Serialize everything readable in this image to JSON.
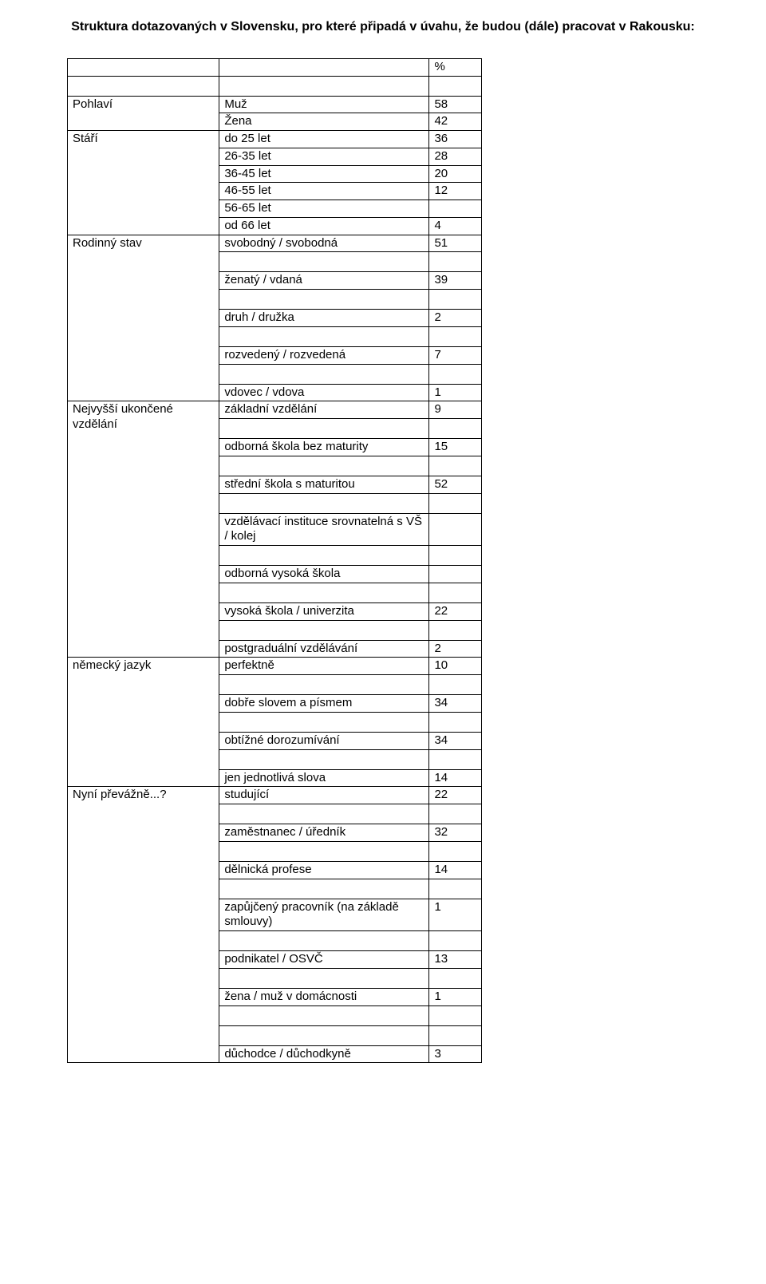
{
  "title": "Struktura dotazovaných v Slovensku, pro které připadá v úvahu, že budou (dále) pracovat v Rakousku:",
  "header": {
    "percent": "%"
  },
  "sections": {
    "gender": {
      "category": "Pohlaví",
      "rows": [
        {
          "label": "Muž",
          "value": "58"
        },
        {
          "label": "Žena",
          "value": "42"
        }
      ]
    },
    "age": {
      "category": "Stáří",
      "rows": [
        {
          "label": "do 25 let",
          "value": "36"
        },
        {
          "label": "26-35 let",
          "value": "28"
        },
        {
          "label": "36-45 let",
          "value": "20"
        },
        {
          "label": "46-55 let",
          "value": "12"
        },
        {
          "label": "56-65 let",
          "value": ""
        },
        {
          "label": "od 66 let",
          "value": "4"
        }
      ]
    },
    "marital": {
      "category": "Rodinný stav",
      "rows_block1": [
        {
          "label": "svobodný / svobodná",
          "value": "51"
        },
        {
          "label": "ženatý / vdaná",
          "value": "39"
        },
        {
          "label": "druh / družka",
          "value": "2"
        }
      ],
      "rows_block2": [
        {
          "label": "rozvedený / rozvedená",
          "value": "7"
        },
        {
          "label": "vdovec / vdova",
          "value": "1"
        }
      ]
    },
    "education": {
      "category": "Nejvyšší ukončené vzdělání",
      "rows": [
        {
          "label": "základní vzdělání",
          "value": "9"
        },
        {
          "label": "odborná škola bez maturity",
          "value": "15"
        },
        {
          "label": "střední škola s maturitou",
          "value": "52"
        },
        {
          "label": "vzdělávací instituce srovnatelná s VŠ / kolej",
          "value": ""
        },
        {
          "label": "odborná vysoká škola",
          "value": ""
        },
        {
          "label": "vysoká škola / univerzita",
          "value": "22"
        },
        {
          "label": "postgraduální vzdělávání",
          "value": "2"
        }
      ]
    },
    "german": {
      "category": "německý jazyk",
      "rows": [
        {
          "label": "perfektně",
          "value": "10"
        },
        {
          "label": "dobře slovem a písmem",
          "value": "34"
        },
        {
          "label": "obtížné dorozumívání",
          "value": "34"
        },
        {
          "label": "jen jednotlivá slova",
          "value": "14"
        }
      ]
    },
    "currently": {
      "category": "Nyní převážně...?",
      "rows_block1": [
        {
          "label": "studující",
          "value": "22"
        },
        {
          "label": "zaměstnanec / úředník",
          "value": "32"
        },
        {
          "label": "dělnická profese",
          "value": "14"
        },
        {
          "label": "zapůjčený pracovník (na základě smlouvy)",
          "value": "1"
        },
        {
          "label": "podnikatel / OSVČ",
          "value": "13"
        },
        {
          "label": "žena / muž v domácnosti",
          "value": "1"
        }
      ],
      "rows_block2": [
        {
          "label": "důchodce / důchodkyně",
          "value": "3"
        }
      ]
    }
  }
}
